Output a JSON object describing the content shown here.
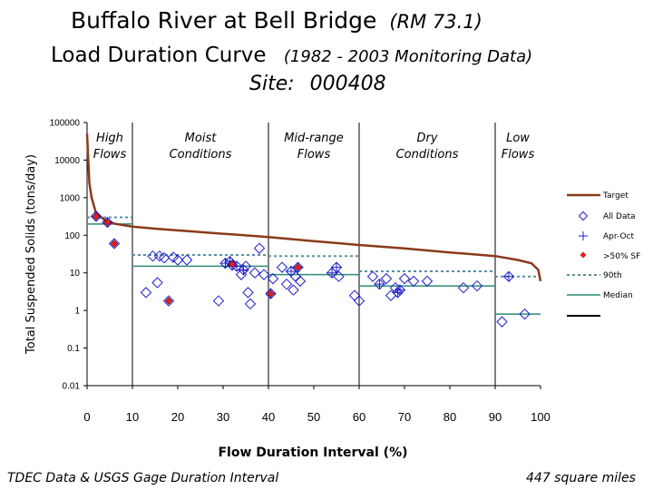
{
  "header": {
    "title": "Buffalo River at Bell Bridge",
    "title_rm": "(RM 73.1)",
    "subtitle": "Load Duration Curve",
    "subtitle_period": "(1982 - 2003 Monitoring Data)",
    "site_label": "Site:",
    "site_id": "000408"
  },
  "footer": {
    "source": "TDEC Data & USGS Gage Duration Interval",
    "area": "447 square miles"
  },
  "chart_data": {
    "type": "scatter",
    "title": "Buffalo River at Bell Bridge (RM 73.1) Load Duration Curve (1982 - 2003 Monitoring Data)",
    "xlabel": "Flow Duration Interval (%)",
    "ylabel": "Total Suspended Solids (tons/day)",
    "x_ticks": [
      "0",
      "10",
      "20",
      "30",
      "40",
      "50",
      "60",
      "70",
      "80",
      "90",
      "100"
    ],
    "y_ticks": [
      "100000",
      "10000",
      "1000",
      "100",
      "10",
      "1",
      "0.1",
      "0.01"
    ],
    "xlim": [
      0,
      100
    ],
    "ylim": [
      0.01,
      100000
    ],
    "y_scale": "log",
    "grid": false,
    "legend_position": "right",
    "regions": [
      {
        "label": "High Flows",
        "x_start": 0,
        "x_end": 10
      },
      {
        "label": "Moist Conditions",
        "x_start": 10,
        "x_end": 40
      },
      {
        "label": "Mid-range Flows",
        "x_start": 40,
        "x_end": 60
      },
      {
        "label": "Dry Conditions",
        "x_start": 60,
        "x_end": 90
      },
      {
        "label": "Low Flows",
        "x_start": 90,
        "x_end": 100
      }
    ],
    "legend": {
      "target": "Target",
      "all_data": "All Data",
      "apr_oct": "Apr-Oct",
      "gt50sf": ">50% SF",
      "p90": "90th",
      "median": "Median"
    },
    "colors": {
      "target": "#8B3A1A",
      "all_data": "#1F1FCC",
      "gt50sf": "#E0201E",
      "p90": "#5A8FA0",
      "median": "#2E8B7A",
      "divider": "#000000"
    },
    "target_curve": [
      [
        0,
        50000
      ],
      [
        0.5,
        2500
      ],
      [
        1,
        1000
      ],
      [
        2,
        380
      ],
      [
        4,
        250
      ],
      [
        6,
        205
      ],
      [
        8,
        185
      ],
      [
        10,
        170
      ],
      [
        15,
        150
      ],
      [
        20,
        135
      ],
      [
        30,
        110
      ],
      [
        40,
        90
      ],
      [
        50,
        70
      ],
      [
        60,
        55
      ],
      [
        70,
        45
      ],
      [
        80,
        35
      ],
      [
        90,
        28
      ],
      [
        95,
        22
      ],
      [
        98,
        18
      ],
      [
        99.5,
        12
      ],
      [
        100,
        6
      ]
    ],
    "ninetieth_percentile": [
      {
        "x_start": 0,
        "x_end": 10,
        "y": 300
      },
      {
        "x_start": 10,
        "x_end": 40,
        "y": 30
      },
      {
        "x_start": 40,
        "x_end": 60,
        "y": 28
      },
      {
        "x_start": 60,
        "x_end": 90,
        "y": 11
      },
      {
        "x_start": 90,
        "x_end": 100,
        "y": 8
      }
    ],
    "median": [
      {
        "x_start": 0,
        "x_end": 10,
        "y": 200
      },
      {
        "x_start": 10,
        "x_end": 40,
        "y": 15
      },
      {
        "x_start": 40,
        "x_end": 60,
        "y": 9
      },
      {
        "x_start": 60,
        "x_end": 90,
        "y": 4.5
      },
      {
        "x_start": 90,
        "x_end": 100,
        "y": 0.8
      }
    ],
    "all_data": [
      [
        2,
        320
      ],
      [
        4.5,
        220
      ],
      [
        6,
        60
      ],
      [
        13,
        3
      ],
      [
        14.5,
        28
      ],
      [
        15.5,
        5.5
      ],
      [
        16,
        28
      ],
      [
        17,
        25
      ],
      [
        18,
        1.8
      ],
      [
        19,
        26
      ],
      [
        20,
        22
      ],
      [
        22,
        22
      ],
      [
        29,
        1.8
      ],
      [
        30.5,
        18
      ],
      [
        31.5,
        20
      ],
      [
        32,
        16
      ],
      [
        33,
        15
      ],
      [
        34,
        9
      ],
      [
        34.5,
        12
      ],
      [
        35,
        15
      ],
      [
        35.5,
        3
      ],
      [
        36,
        1.5
      ],
      [
        37,
        10
      ],
      [
        38,
        45
      ],
      [
        39,
        9
      ],
      [
        40.5,
        2.8
      ],
      [
        41,
        7
      ],
      [
        43,
        14
      ],
      [
        44,
        5
      ],
      [
        45,
        11
      ],
      [
        45.5,
        3.5
      ],
      [
        46,
        8
      ],
      [
        46.5,
        14
      ],
      [
        47,
        6
      ],
      [
        54,
        10
      ],
      [
        55,
        14
      ],
      [
        55.5,
        8
      ],
      [
        59,
        2.5
      ],
      [
        60,
        1.8
      ],
      [
        63,
        8
      ],
      [
        64.5,
        5
      ],
      [
        66,
        7
      ],
      [
        67,
        2.5
      ],
      [
        68,
        4
      ],
      [
        68.5,
        3
      ],
      [
        69,
        3.5
      ],
      [
        70,
        7
      ],
      [
        72,
        6
      ],
      [
        75,
        6
      ],
      [
        83,
        4
      ],
      [
        86,
        4.5
      ],
      [
        91.5,
        0.5
      ],
      [
        93,
        8
      ],
      [
        96.5,
        0.8
      ]
    ],
    "apr_oct": [
      [
        2,
        320
      ],
      [
        4.5,
        220
      ],
      [
        30.5,
        18
      ],
      [
        31.5,
        20
      ],
      [
        32,
        16
      ],
      [
        33,
        15
      ],
      [
        34.5,
        12
      ],
      [
        40.5,
        2.8
      ],
      [
        45,
        11
      ],
      [
        46.5,
        14
      ],
      [
        54,
        10
      ],
      [
        55,
        14
      ],
      [
        64.5,
        5
      ],
      [
        68.5,
        3
      ],
      [
        69,
        3.5
      ],
      [
        93,
        8
      ]
    ],
    "gt50sf": [
      [
        2,
        320
      ],
      [
        4.5,
        220
      ],
      [
        6,
        60
      ],
      [
        18,
        1.8
      ],
      [
        32,
        17
      ],
      [
        40.5,
        2.8
      ],
      [
        46.5,
        14
      ]
    ]
  }
}
